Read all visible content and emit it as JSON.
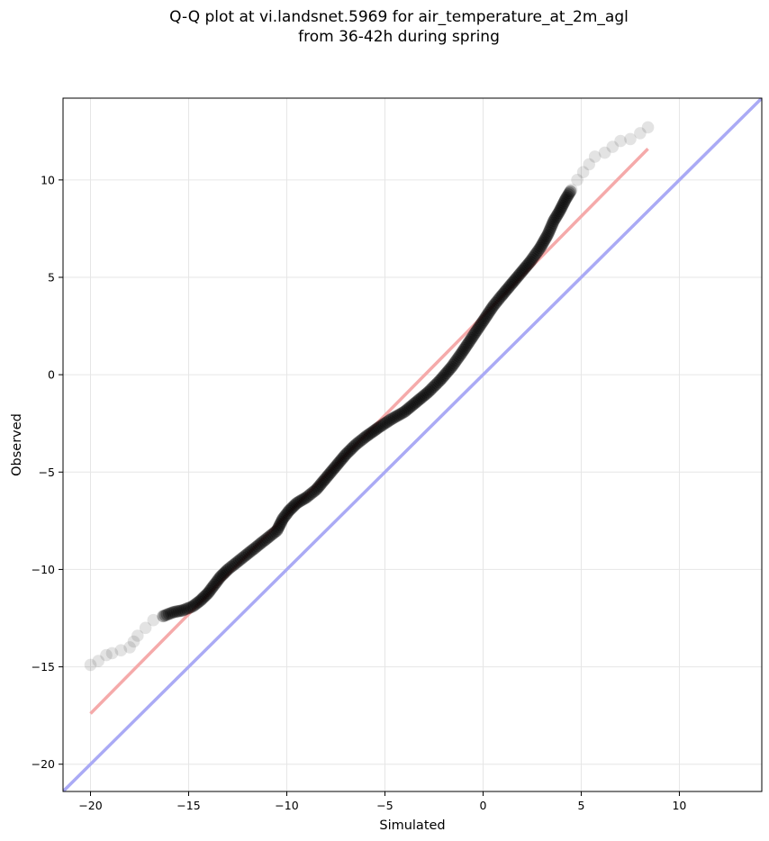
{
  "chart_data": {
    "type": "scatter",
    "title": [
      "Q-Q plot at vi.landsnet.5969 for air_temperature_at_2m_agl",
      "from 36-42h during spring"
    ],
    "xlabel": "Simulated",
    "ylabel": "Observed",
    "xlim": [
      -21.4,
      14.2
    ],
    "ylim": [
      -21.4,
      14.2
    ],
    "xticks": [
      -20,
      -15,
      -10,
      -5,
      0,
      5,
      10
    ],
    "yticks": [
      -20,
      -15,
      -10,
      -5,
      0,
      5,
      10
    ],
    "xtick_labels": [
      "−20",
      "−15",
      "−10",
      "−5",
      "0",
      "5",
      "10"
    ],
    "ytick_labels": [
      "−20",
      "−15",
      "−10",
      "−5",
      "0",
      "5",
      "10"
    ],
    "grid": true,
    "reference_line": {
      "name": "1:1",
      "color": "#aaaaf5",
      "from": [
        -21.4,
        -21.4
      ],
      "to": [
        14.2,
        14.2
      ]
    },
    "fit_line": {
      "color": "#f5aaaa",
      "from": [
        -20.0,
        -17.4
      ],
      "to": [
        8.4,
        11.6
      ]
    },
    "point_color": "#000000",
    "qq_curve": [
      [
        -20.0,
        -14.9
      ],
      [
        -19.6,
        -14.7
      ],
      [
        -19.2,
        -14.4
      ],
      [
        -18.9,
        -14.3
      ],
      [
        -18.0,
        -14.0
      ],
      [
        -17.6,
        -13.4
      ],
      [
        -17.2,
        -13.0
      ],
      [
        -16.8,
        -12.6
      ],
      [
        -16.3,
        -12.4
      ],
      [
        -15.8,
        -12.2
      ],
      [
        -15.3,
        -12.1
      ],
      [
        -14.8,
        -11.9
      ],
      [
        -14.4,
        -11.6
      ],
      [
        -14.0,
        -11.2
      ],
      [
        -13.7,
        -10.8
      ],
      [
        -13.4,
        -10.4
      ],
      [
        -13.0,
        -10.0
      ],
      [
        -12.5,
        -9.6
      ],
      [
        -12.0,
        -9.2
      ],
      [
        -11.5,
        -8.8
      ],
      [
        -11.0,
        -8.4
      ],
      [
        -10.5,
        -8.0
      ],
      [
        -10.2,
        -7.4
      ],
      [
        -9.9,
        -7.0
      ],
      [
        -9.5,
        -6.6
      ],
      [
        -9.0,
        -6.3
      ],
      [
        -8.5,
        -5.9
      ],
      [
        -8.0,
        -5.3
      ],
      [
        -7.5,
        -4.7
      ],
      [
        -7.0,
        -4.1
      ],
      [
        -6.5,
        -3.6
      ],
      [
        -6.0,
        -3.2
      ],
      [
        -5.3,
        -2.7
      ],
      [
        -4.7,
        -2.3
      ],
      [
        -4.0,
        -1.9
      ],
      [
        -3.4,
        -1.4
      ],
      [
        -2.8,
        -0.9
      ],
      [
        -2.2,
        -0.3
      ],
      [
        -1.6,
        0.4
      ],
      [
        -1.1,
        1.1
      ],
      [
        -0.7,
        1.7
      ],
      [
        -0.3,
        2.3
      ],
      [
        0.1,
        2.9
      ],
      [
        0.5,
        3.5
      ],
      [
        0.9,
        4.0
      ],
      [
        1.4,
        4.6
      ],
      [
        1.9,
        5.2
      ],
      [
        2.4,
        5.8
      ],
      [
        2.9,
        6.5
      ],
      [
        3.3,
        7.2
      ],
      [
        3.6,
        7.9
      ],
      [
        3.9,
        8.4
      ],
      [
        4.2,
        9.0
      ],
      [
        4.5,
        9.5
      ],
      [
        4.8,
        10.0
      ],
      [
        5.1,
        10.4
      ],
      [
        5.4,
        10.8
      ],
      [
        5.7,
        11.2
      ],
      [
        6.2,
        11.4
      ],
      [
        6.6,
        11.7
      ],
      [
        7.0,
        12.0
      ],
      [
        7.5,
        12.1
      ],
      [
        8.0,
        12.4
      ],
      [
        8.4,
        12.7
      ]
    ]
  }
}
